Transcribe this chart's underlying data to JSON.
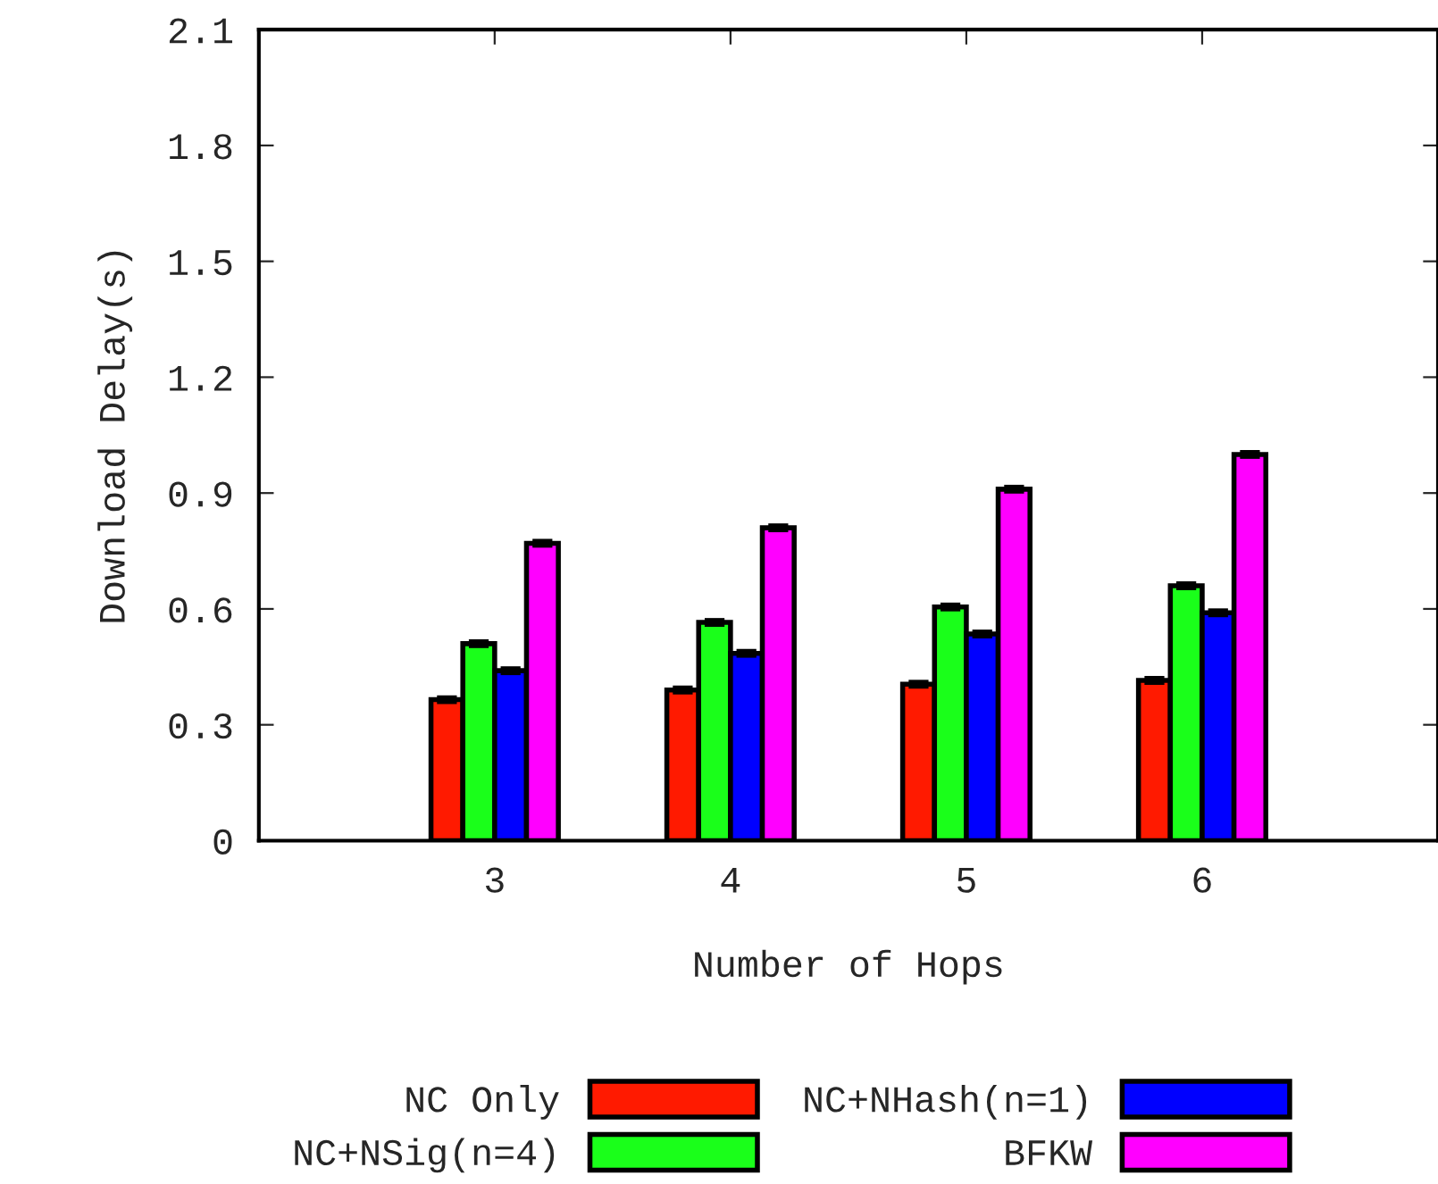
{
  "chart_data": {
    "type": "bar",
    "xlabel": "Number of Hops",
    "ylabel": "Download Delay(s)",
    "categories": [
      "3",
      "4",
      "5",
      "6"
    ],
    "series": [
      {
        "name": "NC Only",
        "color": "#ff1a00",
        "values": [
          0.365,
          0.39,
          0.405,
          0.415
        ],
        "errors": [
          0.005,
          0.005,
          0.005,
          0.005
        ]
      },
      {
        "name": "NC+NSig(n=4)",
        "color": "#1aff1a",
        "values": [
          0.51,
          0.565,
          0.605,
          0.66
        ],
        "errors": [
          0.005,
          0.005,
          0.005,
          0.005
        ]
      },
      {
        "name": "NC+NHash(n=1)",
        "color": "#0000ff",
        "values": [
          0.44,
          0.485,
          0.535,
          0.59
        ],
        "errors": [
          0.005,
          0.005,
          0.005,
          0.005
        ]
      },
      {
        "name": "BFKW",
        "color": "#ff00ff",
        "values": [
          0.77,
          0.81,
          0.91,
          1.0
        ],
        "errors": [
          0.005,
          0.005,
          0.005,
          0.005
        ]
      }
    ],
    "ylim": [
      0,
      2.1
    ],
    "yticks": [
      {
        "value": 0,
        "label": "0"
      },
      0.3,
      0.6,
      0.9,
      1.2,
      1.5,
      1.8,
      2.1
    ],
    "grid": false,
    "legend": "bottom"
  }
}
